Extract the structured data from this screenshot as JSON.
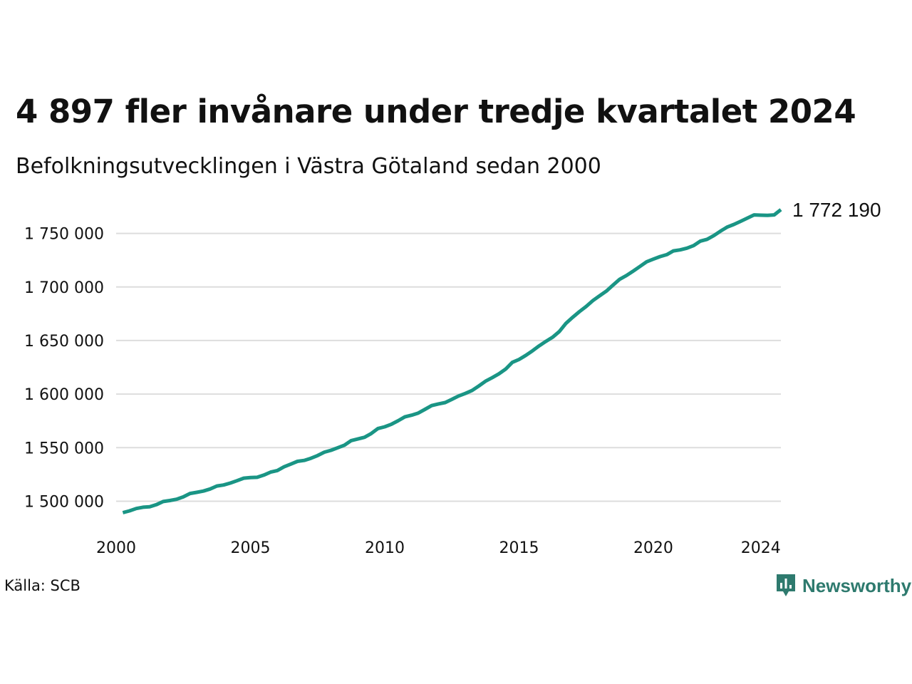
{
  "header": {
    "title": "4 897 fler invånare under tredje kvartalet 2024",
    "subtitle": "Befolkningsutvecklingen i Västra Götaland sedan 2000"
  },
  "footer": {
    "source": "Källa: SCB",
    "brand": "Newsworthy"
  },
  "colors": {
    "line": "#1a9585",
    "grid": "#dddddd",
    "brand": "#2e7a6e"
  },
  "chart_data": {
    "type": "line",
    "title": "4 897 fler invånare under tredje kvartalet 2024",
    "subtitle": "Befolkningsutvecklingen i Västra Götaland sedan 2000",
    "xlabel": "",
    "ylabel": "",
    "xlim": [
      2000,
      2024.75
    ],
    "ylim": [
      1485000,
      1775000
    ],
    "x_ticks": [
      2000,
      2005,
      2010,
      2015,
      2020,
      2024
    ],
    "x_tick_labels": [
      "2000",
      "2005",
      "2010",
      "2015",
      "2020",
      "2024"
    ],
    "y_ticks": [
      1500000,
      1550000,
      1600000,
      1650000,
      1700000,
      1750000
    ],
    "y_tick_labels": [
      "1 500 000",
      "1 550 000",
      "1 600 000",
      "1 650 000",
      "1 700 000",
      "1 750 000"
    ],
    "grid": true,
    "end_label": "1 772 190",
    "series": [
      {
        "x": [
          2000.25,
          2000.5,
          2000.75,
          2001.0,
          2001.25,
          2001.5,
          2001.75,
          2002.0,
          2002.25,
          2002.5,
          2002.75,
          2003.0,
          2003.25,
          2003.5,
          2003.75,
          2004.0,
          2004.25,
          2004.5,
          2004.75,
          2005.0,
          2005.25,
          2005.5,
          2005.75,
          2006.0,
          2006.25,
          2006.5,
          2006.75,
          2007.0,
          2007.25,
          2007.5,
          2007.75,
          2008.0,
          2008.25,
          2008.5,
          2008.75,
          2009.0,
          2009.25,
          2009.5,
          2009.75,
          2010.0,
          2010.25,
          2010.5,
          2010.75,
          2011.0,
          2011.25,
          2011.5,
          2011.75,
          2012.0,
          2012.25,
          2012.5,
          2012.75,
          2013.0,
          2013.25,
          2013.5,
          2013.75,
          2014.0,
          2014.25,
          2014.5,
          2014.75,
          2015.0,
          2015.25,
          2015.5,
          2015.75,
          2016.0,
          2016.25,
          2016.5,
          2016.75,
          2017.0,
          2017.25,
          2017.5,
          2017.75,
          2018.0,
          2018.25,
          2018.5,
          2018.75,
          2019.0,
          2019.25,
          2019.5,
          2019.75,
          2020.0,
          2020.25,
          2020.5,
          2020.75,
          2021.0,
          2021.25,
          2021.5,
          2021.75,
          2022.0,
          2022.25,
          2022.5,
          2022.75,
          2023.0,
          2023.25,
          2023.5,
          2023.75,
          2024.0,
          2024.25,
          2024.5,
          2024.75
        ],
        "values": [
          1489300,
          1491000,
          1493200,
          1494400,
          1494800,
          1496800,
          1499700,
          1500600,
          1501800,
          1504000,
          1507200,
          1508300,
          1509500,
          1511400,
          1514200,
          1515100,
          1516900,
          1519100,
          1521500,
          1522100,
          1522300,
          1524400,
          1527200,
          1528600,
          1532100,
          1534600,
          1537200,
          1538100,
          1540100,
          1542600,
          1545800,
          1547500,
          1549900,
          1552300,
          1556600,
          1558100,
          1559700,
          1563200,
          1567900,
          1569500,
          1571900,
          1575100,
          1578700,
          1580300,
          1582300,
          1585800,
          1589300,
          1590800,
          1592100,
          1595100,
          1598200,
          1600600,
          1603300,
          1607500,
          1612000,
          1615300,
          1618900,
          1623300,
          1629600,
          1632300,
          1636100,
          1640400,
          1645000,
          1649200,
          1653100,
          1658400,
          1666100,
          1671700,
          1677000,
          1681800,
          1687300,
          1691700,
          1696100,
          1701800,
          1707200,
          1710700,
          1714800,
          1719100,
          1723500,
          1726000,
          1728400,
          1730200,
          1733700,
          1734600,
          1736200,
          1738600,
          1742800,
          1744500,
          1747900,
          1752100,
          1755900,
          1758400,
          1761300,
          1764300,
          1767300,
          1767000,
          1766800,
          1767300,
          1772190
        ]
      }
    ]
  }
}
